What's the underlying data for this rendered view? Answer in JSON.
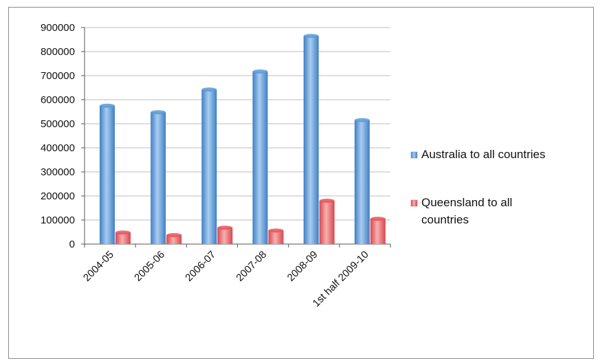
{
  "chart_data": {
    "type": "bar",
    "categories": [
      "2004-05",
      "2005-06",
      "2006-07",
      "2007-08",
      "2008-09",
      "1st half 2009-10"
    ],
    "series": [
      {
        "name": "Australia to all countries",
        "values": [
          575000,
          548000,
          642000,
          717000,
          865000,
          515000
        ],
        "color": "#5b9bd5"
      },
      {
        "name": "Queensland to all countries",
        "values": [
          48000,
          37000,
          68000,
          56000,
          180000,
          105000
        ],
        "color": "#e8555a"
      }
    ],
    "yticks": [
      "0",
      "100000",
      "200000",
      "300000",
      "400000",
      "500000",
      "600000",
      "700000",
      "800000",
      "900000"
    ],
    "ylim": [
      0,
      900000
    ],
    "grid": true,
    "legend": {
      "placement": "right",
      "lines": [
        [
          "Australia to all countries"
        ],
        [
          "Queensland to all",
          "countries"
        ]
      ]
    }
  }
}
